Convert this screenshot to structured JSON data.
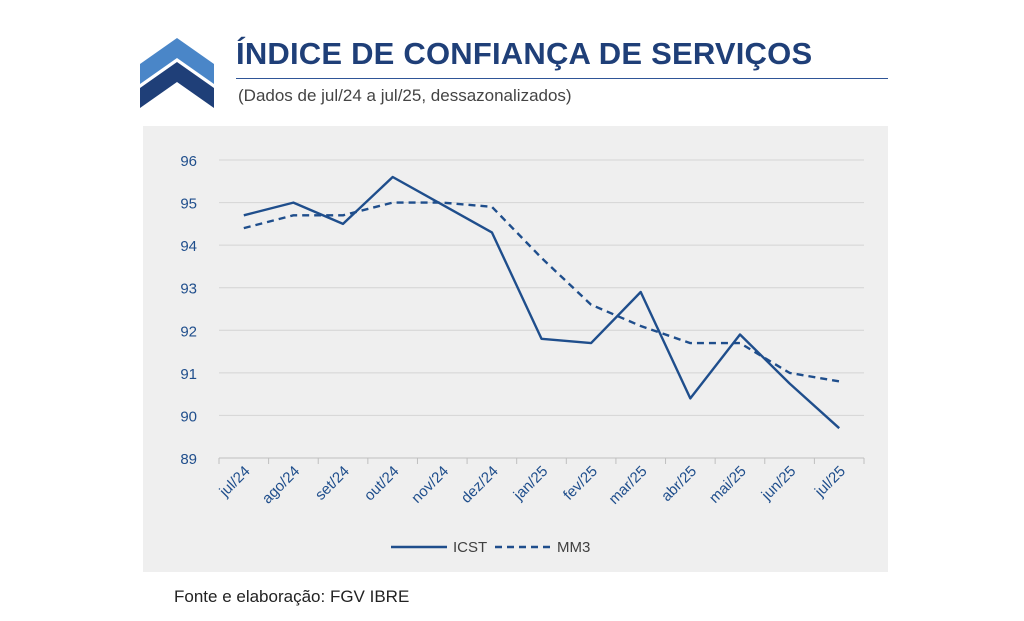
{
  "header": {
    "title": "ÍNDICE DE CONFIANÇA DE SERVIÇOS",
    "subtitle": "(Dados de jul/24 a jul/25, dessazonalizados)"
  },
  "footer": {
    "source": "Fonte e elaboração: FGV IBRE"
  },
  "colors": {
    "title": "#1f3f78",
    "series": "#1f4e8c",
    "logo_light": "#4a86c8",
    "logo_dark": "#1f3f78",
    "panel": "#efefef",
    "grid": "#d4d4d4"
  },
  "chart_data": {
    "type": "line",
    "title": "",
    "xlabel": "",
    "ylabel": "",
    "categories": [
      "jul/24",
      "ago/24",
      "set/24",
      "out/24",
      "nov/24",
      "dez/24",
      "jan/25",
      "fev/25",
      "mar/25",
      "abr/25",
      "mai/25",
      "jun/25",
      "jul/25"
    ],
    "ylim": [
      89,
      96
    ],
    "yticks": [
      "89",
      "90",
      "91",
      "92",
      "93",
      "94",
      "95",
      "96"
    ],
    "grid": true,
    "legend_position": "bottom",
    "series": [
      {
        "name": "ICST",
        "style": "solid",
        "values": [
          94.7,
          95.0,
          94.5,
          95.6,
          94.95,
          94.3,
          91.8,
          91.7,
          92.9,
          90.4,
          91.9,
          90.75,
          89.7
        ]
      },
      {
        "name": "MM3",
        "style": "dashed",
        "values": [
          94.4,
          94.7,
          94.7,
          95.0,
          95.0,
          94.9,
          93.7,
          92.6,
          92.1,
          91.7,
          91.7,
          91.0,
          90.8
        ]
      }
    ]
  }
}
